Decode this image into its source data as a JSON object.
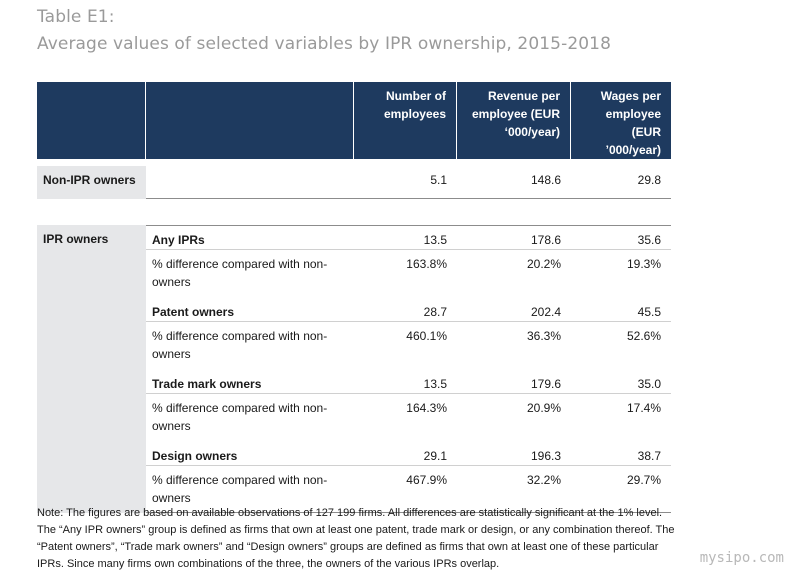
{
  "title": {
    "label": "Table E1:",
    "subtitle": "Average values of selected variables by IPR ownership, 2015-2018"
  },
  "header": {
    "col1": "",
    "col2": "",
    "col3": "Number of employees",
    "col4": "Revenue per employee (EUR ‘000/year)",
    "col5": "Wages per employee (EUR ’000/year)"
  },
  "non_ipr": {
    "label": "Non-IPR owners",
    "employees": "5.1",
    "revenue": "148.6",
    "wages": "29.8"
  },
  "ipr_group_label": "IPR owners",
  "groups": [
    {
      "name": "Any IPRs",
      "employees": "13.5",
      "revenue": "178.6",
      "wages": "35.6",
      "diff_label": "% difference compared with non-owners",
      "diff_employees": "163.8%",
      "diff_revenue": "20.2%",
      "diff_wages": "19.3%"
    },
    {
      "name": "Patent owners",
      "employees": "28.7",
      "revenue": "202.4",
      "wages": "45.5",
      "diff_label": "% difference compared with non-owners",
      "diff_employees": "460.1%",
      "diff_revenue": "36.3%",
      "diff_wages": "52.6%"
    },
    {
      "name": "Trade mark owners",
      "employees": "13.5",
      "revenue": "179.6",
      "wages": "35.0",
      "diff_label": "% difference compared with non-owners",
      "diff_employees": "164.3%",
      "diff_revenue": "20.9%",
      "diff_wages": "17.4%"
    },
    {
      "name": "Design owners",
      "employees": "29.1",
      "revenue": "196.3",
      "wages": "38.7",
      "diff_label": "% difference compared with non-owners",
      "diff_employees": "467.9%",
      "diff_revenue": "32.2%",
      "diff_wages": "29.7%"
    }
  ],
  "note": "Note: The figures are based on available observations of 127 199 firms. All differences are statistically significant at the 1% level. The “Any IPR owners” group is defined as firms that own at least one patent, trade mark or design, or any combination thereof. The “Patent owners”, “Trade mark owners” and “Design owners” groups are defined as firms that own at least one of these particular IPRs. Since many firms own combinations of the three, the owners of the various IPRs overlap.",
  "watermark": "mysipo.com",
  "colors": {
    "header_bg": "#1e3a5f",
    "group_bg": "#e6e7e9",
    "title_gray": "#9a9a9a"
  }
}
